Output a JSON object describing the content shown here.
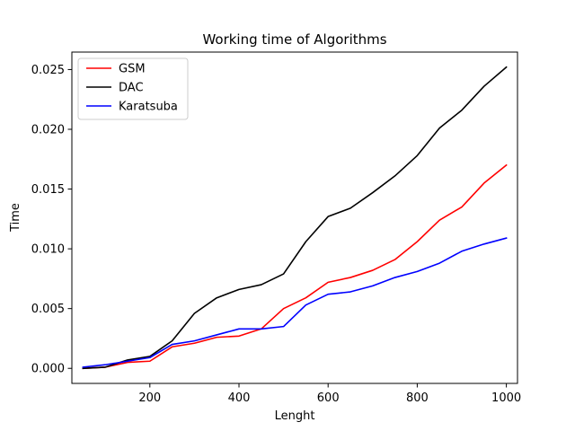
{
  "chart_data": {
    "type": "line",
    "title": "Working time of Algorithms",
    "xlabel": "Lenght",
    "ylabel": "Time",
    "xlim": [
      25,
      1025
    ],
    "ylim": [
      -0.00126,
      0.02646
    ],
    "xticks": [
      200,
      400,
      600,
      800,
      1000
    ],
    "xtick_labels": [
      "200",
      "400",
      "600",
      "800",
      "1000"
    ],
    "yticks": [
      0.0,
      0.005,
      0.01,
      0.015,
      0.02,
      0.025
    ],
    "ytick_labels": [
      "0.000",
      "0.005",
      "0.010",
      "0.015",
      "0.020",
      "0.025"
    ],
    "grid": false,
    "legend_position": "upper-left",
    "x": [
      50,
      100,
      150,
      200,
      250,
      300,
      350,
      400,
      450,
      500,
      550,
      600,
      650,
      700,
      750,
      800,
      850,
      900,
      950,
      1000
    ],
    "series": [
      {
        "name": "GSM",
        "color": "#ff0000",
        "values": [
          0.0,
          0.0001,
          0.0005,
          0.0006,
          0.0018,
          0.0021,
          0.0026,
          0.0027,
          0.0033,
          0.005,
          0.0059,
          0.0072,
          0.0076,
          0.0082,
          0.0091,
          0.0106,
          0.0124,
          0.0135,
          0.0155,
          0.017
        ]
      },
      {
        "name": "DAC",
        "color": "#000000",
        "values": [
          0.0,
          0.0001,
          0.0007,
          0.001,
          0.0023,
          0.0046,
          0.0059,
          0.0066,
          0.007,
          0.0079,
          0.0106,
          0.0127,
          0.0134,
          0.0147,
          0.0161,
          0.0178,
          0.0201,
          0.0216,
          0.0236,
          0.0252
        ]
      },
      {
        "name": "Karatsuba",
        "color": "#0000ff",
        "values": [
          0.0001,
          0.0003,
          0.0006,
          0.0009,
          0.002,
          0.0023,
          0.0028,
          0.0033,
          0.0033,
          0.0035,
          0.0053,
          0.0062,
          0.0064,
          0.0069,
          0.0076,
          0.0081,
          0.0088,
          0.0098,
          0.0104,
          0.0109
        ]
      }
    ]
  }
}
